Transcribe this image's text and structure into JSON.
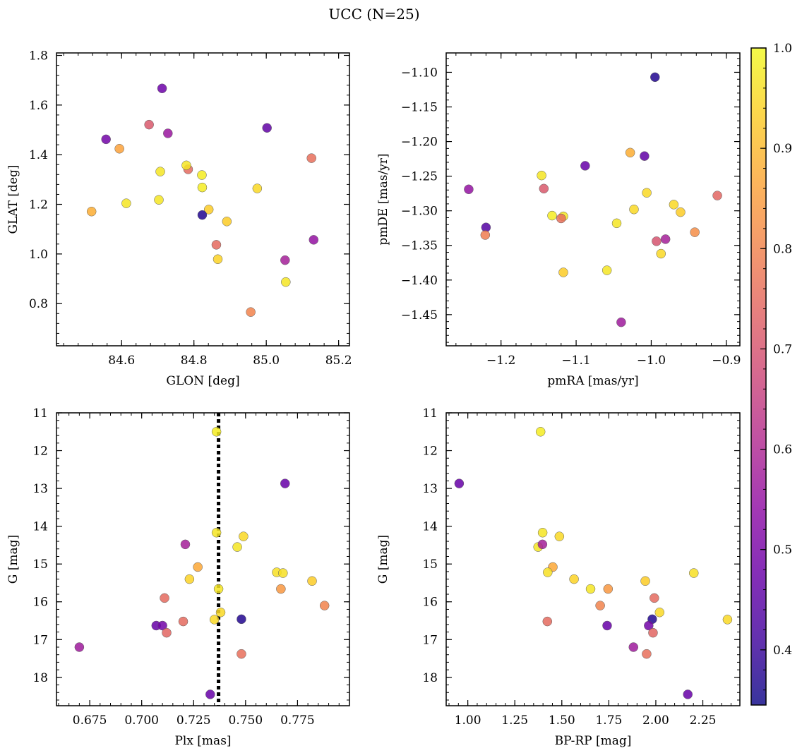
{
  "figure_title": "UCC (N=25)",
  "colormap": {
    "name": "plasma",
    "range": [
      0.345,
      1.0
    ],
    "ticks": [
      0.4,
      0.5,
      0.6,
      0.7,
      0.8,
      0.9,
      1.0
    ],
    "tick_labels": [
      "0.4",
      "0.5",
      "0.6",
      "0.7",
      "0.8",
      "0.9",
      "1.0"
    ]
  },
  "chart_data": [
    {
      "type": "scatter",
      "xlabel": "GLON [deg]",
      "ylabel": "GLAT [deg]",
      "xlim": [
        84.42,
        85.23
      ],
      "ylim": [
        0.63,
        1.81
      ],
      "xticks": [
        84.6,
        84.8,
        85.0,
        85.2
      ],
      "xtick_labels": [
        "84.6",
        "84.8",
        "85.0",
        "85.2"
      ],
      "yticks": [
        0.8,
        1.0,
        1.2,
        1.4,
        1.6,
        1.8
      ],
      "ytick_labels": [
        "0.8",
        "1.0",
        "1.2",
        "1.4",
        "1.6",
        "1.8"
      ],
      "x": [
        84.712,
        84.557,
        84.676,
        84.728,
        85.002,
        84.594,
        84.784,
        85.125,
        84.779,
        84.707,
        84.822,
        84.613,
        84.703,
        84.823,
        84.975,
        84.517,
        84.841,
        84.891,
        84.823,
        84.862,
        84.866,
        85.052,
        85.131,
        85.054,
        84.957
      ],
      "y": [
        1.667,
        1.462,
        1.521,
        1.486,
        1.508,
        1.424,
        1.341,
        1.386,
        1.357,
        1.332,
        1.318,
        1.204,
        1.218,
        1.268,
        1.264,
        1.171,
        1.179,
        1.131,
        1.157,
        1.037,
        0.979,
        0.975,
        1.057,
        0.887,
        0.766
      ],
      "color_values": [
        0.48,
        0.49,
        0.71,
        0.56,
        0.46,
        0.86,
        0.75,
        0.76,
        0.97,
        0.97,
        0.98,
        0.97,
        0.97,
        0.98,
        0.95,
        0.88,
        0.93,
        0.93,
        0.37,
        0.75,
        0.94,
        0.58,
        0.55,
        0.97,
        0.8
      ]
    },
    {
      "type": "scatter",
      "xlabel": "pmRA [mas/yr]",
      "ylabel": "pmDE [mas/yr]",
      "xlim": [
        -1.273,
        -0.882
      ],
      "ylim": [
        -1.495,
        -1.072
      ],
      "xticks": [
        -1.2,
        -1.1,
        -1.0,
        -0.9
      ],
      "xtick_labels": [
        "−1.2",
        "−1.1",
        "−1.0",
        "−0.9"
      ],
      "yticks": [
        -1.45,
        -1.4,
        -1.35,
        -1.3,
        -1.25,
        -1.2,
        -1.15,
        -1.1
      ],
      "ytick_labels": [
        "−1.45",
        "−1.40",
        "−1.35",
        "−1.30",
        "−1.25",
        "−1.20",
        "−1.15",
        "−1.10"
      ],
      "x": [
        -0.995,
        -1.009,
        -1.088,
        -1.028,
        -1.146,
        -1.243,
        -1.143,
        -1.22,
        -1.132,
        -1.117,
        -1.12,
        -1.221,
        -1.006,
        -1.023,
        -0.97,
        -0.961,
        -0.912,
        -0.942,
        -1.046,
        -0.993,
        -0.981,
        -0.987,
        -1.117,
        -1.059,
        -1.04
      ],
      "y": [
        -1.107,
        -1.221,
        -1.235,
        -1.216,
        -1.249,
        -1.269,
        -1.268,
        -1.324,
        -1.307,
        -1.308,
        -1.311,
        -1.335,
        -1.274,
        -1.298,
        -1.291,
        -1.302,
        -1.278,
        -1.331,
        -1.318,
        -1.344,
        -1.341,
        -1.362,
        -1.389,
        -1.386,
        -1.461
      ],
      "color_values": [
        0.37,
        0.46,
        0.47,
        0.88,
        0.97,
        0.55,
        0.71,
        0.44,
        0.98,
        0.97,
        0.76,
        0.79,
        0.95,
        0.95,
        0.95,
        0.93,
        0.74,
        0.82,
        0.97,
        0.7,
        0.58,
        0.95,
        0.93,
        0.97,
        0.57
      ]
    },
    {
      "type": "scatter",
      "xlabel": "Plx [mas]",
      "ylabel": "G [mag]",
      "xlim": [
        0.659,
        0.8
      ],
      "ylim": [
        18.75,
        11.0
      ],
      "y_inverted": true,
      "reference_line": {
        "axis": "x",
        "value": 0.737,
        "style": "dotted"
      },
      "xticks": [
        0.675,
        0.7,
        0.725,
        0.75,
        0.775
      ],
      "xtick_labels": [
        "0.675",
        "0.700",
        "0.725",
        "0.750",
        "0.775"
      ],
      "yticks": [
        11,
        12,
        13,
        14,
        15,
        16,
        17,
        18
      ],
      "ytick_labels": [
        "11",
        "12",
        "13",
        "14",
        "15",
        "16",
        "17",
        "18"
      ],
      "x": [
        0.736,
        0.769,
        0.736,
        0.749,
        0.746,
        0.721,
        0.727,
        0.765,
        0.768,
        0.782,
        0.723,
        0.737,
        0.767,
        0.711,
        0.788,
        0.738,
        0.72,
        0.735,
        0.748,
        0.707,
        0.71,
        0.712,
        0.67,
        0.748,
        0.733
      ],
      "y": [
        11.5,
        12.87,
        14.17,
        14.27,
        14.55,
        14.48,
        15.08,
        15.22,
        15.24,
        15.45,
        15.4,
        15.66,
        15.66,
        15.9,
        16.1,
        16.28,
        16.52,
        16.47,
        16.46,
        16.63,
        16.63,
        16.82,
        17.2,
        17.38,
        18.45
      ],
      "color_values": [
        0.98,
        0.47,
        0.97,
        0.95,
        0.97,
        0.58,
        0.87,
        0.96,
        0.96,
        0.93,
        0.94,
        0.97,
        0.84,
        0.75,
        0.8,
        0.95,
        0.75,
        0.95,
        0.37,
        0.47,
        0.49,
        0.74,
        0.57,
        0.76,
        0.47
      ]
    },
    {
      "type": "scatter",
      "xlabel": "BP-RP [mag]",
      "ylabel": "G [mag]",
      "xlim": [
        0.885,
        2.447
      ],
      "ylim": [
        18.75,
        11.0
      ],
      "y_inverted": true,
      "xticks": [
        1.0,
        1.25,
        1.5,
        1.75,
        2.0,
        2.25
      ],
      "xtick_labels": [
        "1.00",
        "1.25",
        "1.50",
        "1.75",
        "2.00",
        "2.25"
      ],
      "yticks": [
        11,
        12,
        13,
        14,
        15,
        16,
        17,
        18
      ],
      "ytick_labels": [
        "11",
        "12",
        "13",
        "14",
        "15",
        "16",
        "17",
        "18"
      ],
      "x": [
        1.387,
        0.954,
        1.398,
        1.487,
        1.374,
        1.397,
        1.452,
        1.425,
        2.202,
        1.565,
        1.944,
        1.653,
        1.746,
        1.992,
        1.704,
        2.02,
        1.423,
        2.381,
        1.981,
        1.741,
        1.962,
        1.985,
        1.881,
        1.951,
        2.17
      ],
      "y": [
        11.5,
        12.87,
        14.17,
        14.27,
        14.55,
        14.48,
        15.08,
        15.22,
        15.24,
        15.4,
        15.45,
        15.66,
        15.66,
        15.9,
        16.1,
        16.28,
        16.52,
        16.47,
        16.46,
        16.63,
        16.63,
        16.82,
        17.2,
        17.38,
        18.45
      ],
      "color_values": [
        0.98,
        0.47,
        0.97,
        0.95,
        0.97,
        0.58,
        0.87,
        0.96,
        0.96,
        0.94,
        0.93,
        0.97,
        0.84,
        0.75,
        0.8,
        0.95,
        0.75,
        0.95,
        0.37,
        0.47,
        0.49,
        0.74,
        0.57,
        0.76,
        0.47
      ]
    }
  ]
}
